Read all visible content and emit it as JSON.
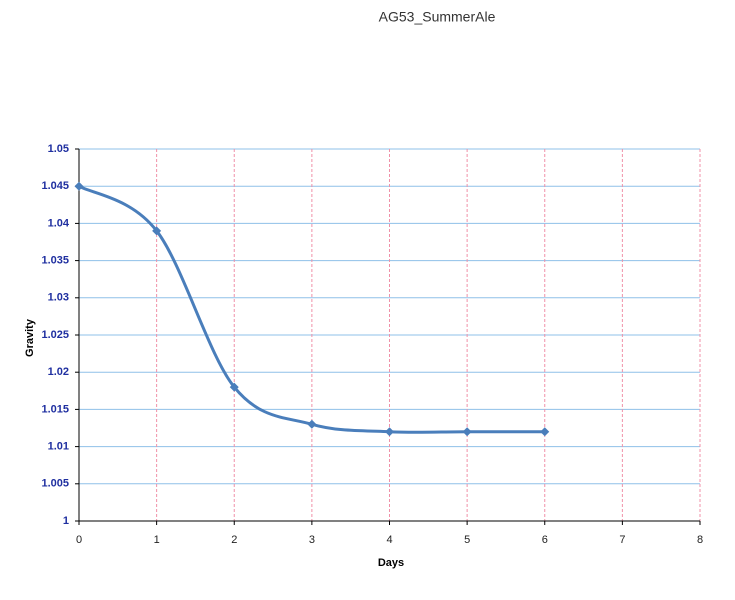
{
  "chart_data": {
    "type": "line",
    "title": "AG53_SummerAle",
    "x_label": "Days",
    "y_label": "Gravity",
    "x": [
      0,
      1,
      2,
      3,
      4,
      5,
      6
    ],
    "series": [
      {
        "name": "Gravity",
        "color": "#4a7ebb",
        "values": [
          1.045,
          1.039,
          1.018,
          1.013,
          1.012,
          1.012,
          1.012
        ]
      }
    ],
    "xlim": [
      0,
      8
    ],
    "xticks": [
      0,
      1,
      2,
      3,
      4,
      5,
      6,
      7,
      8
    ],
    "ylim": [
      1,
      1.05
    ],
    "yticks": [
      1,
      1.005,
      1.01,
      1.015,
      1.02,
      1.025,
      1.03,
      1.035,
      1.04,
      1.045,
      1.05
    ],
    "grid": true,
    "smooth": true,
    "legend": false
  }
}
